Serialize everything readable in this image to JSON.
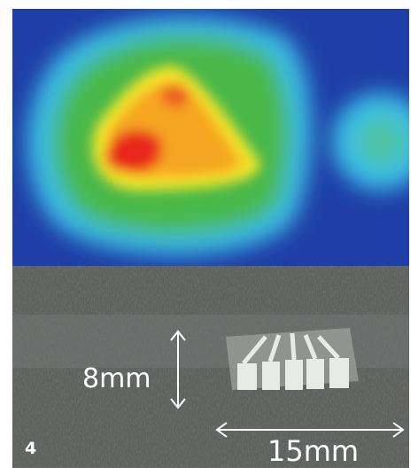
{
  "labels": {
    "height": "8mm",
    "width": "15mm",
    "panel": "4"
  }
}
